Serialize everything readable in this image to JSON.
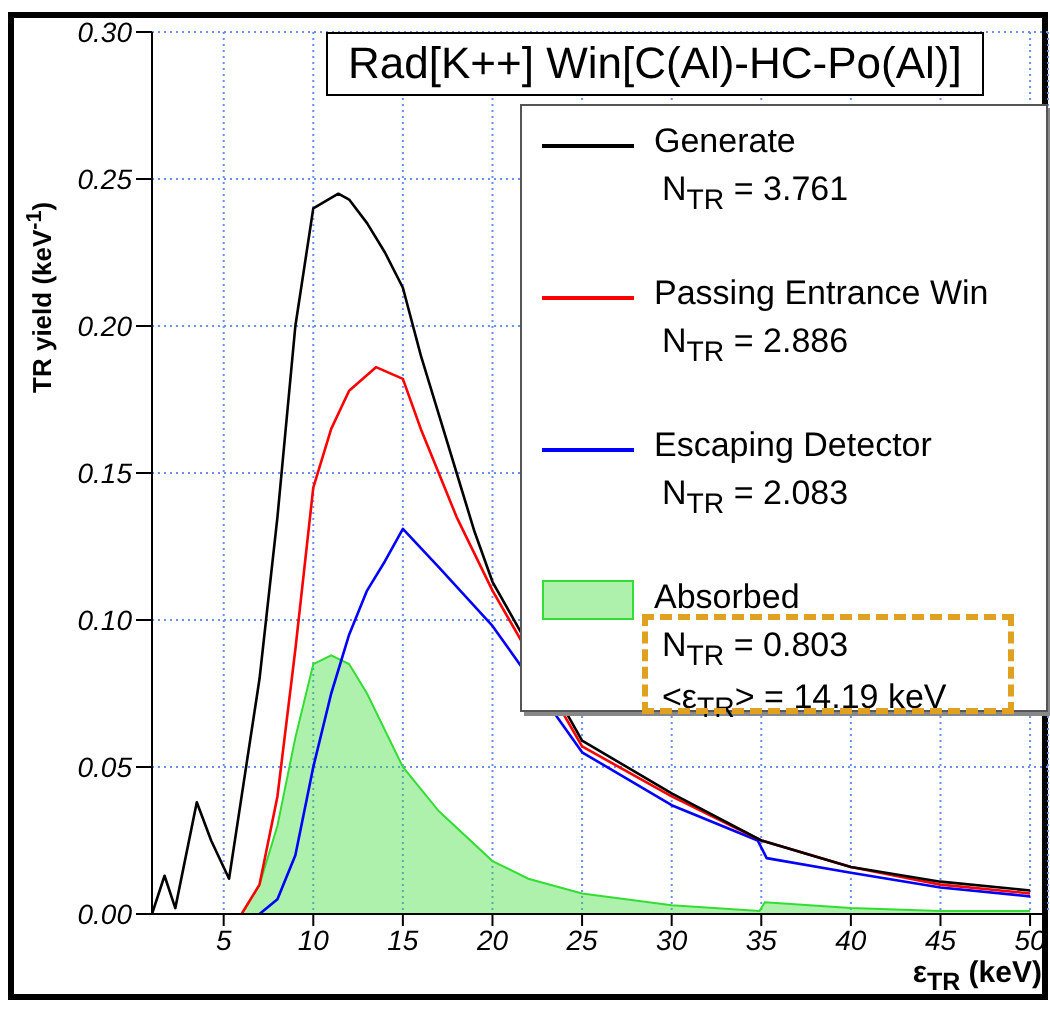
{
  "chart_data": {
    "type": "line",
    "title": "Rad[K++] Win[C(Al)-HC-Po(Al)]",
    "xlabel": "ε$_{TR}$ (keV)",
    "ylabel": "TR yield (keV$^{-1}$)",
    "xlim": [
      1,
      51
    ],
    "xticks": [
      5,
      10,
      15,
      20,
      25,
      30,
      35,
      40,
      45,
      50
    ],
    "ylim": [
      0,
      0.3
    ],
    "yticks": [
      {
        "value": 0,
        "label": "0.00"
      },
      {
        "value": 0.05,
        "label": "0.05"
      },
      {
        "value": 0.1,
        "label": "0.10"
      },
      {
        "value": 0.15,
        "label": "0.15"
      },
      {
        "value": 0.2,
        "label": "0.20"
      },
      {
        "value": 0.25,
        "label": "0.25"
      },
      {
        "value": 0.3,
        "label": "0.30"
      }
    ],
    "grid": true,
    "legend": "top right",
    "marker": "none",
    "line_style": "solid",
    "series": [
      {
        "name": "Generate",
        "color": "#000000",
        "x": [
          1,
          1.7,
          2.3,
          3.5,
          4.3,
          5.3,
          6,
          7,
          8,
          9,
          10,
          11.4,
          12,
          13,
          14,
          15,
          16,
          17,
          18,
          19,
          20,
          22,
          25,
          30,
          35,
          40,
          45,
          50
        ],
        "values": [
          0,
          0.013,
          0.002,
          0.038,
          0.025,
          0.012,
          0.04,
          0.08,
          0.135,
          0.2,
          0.24,
          0.245,
          0.243,
          0.235,
          0.225,
          0.213,
          0.19,
          0.17,
          0.15,
          0.13,
          0.113,
          null,
          0.059,
          0.041,
          0.025,
          0.016,
          0.011,
          0.008
        ]
      },
      {
        "name": "Passing Entrance Win",
        "color": "#ff0000",
        "x": [
          6,
          7,
          8,
          9,
          10,
          11,
          12,
          13.5,
          15,
          16,
          17,
          18,
          20,
          22,
          25,
          30,
          35,
          40,
          45,
          50
        ],
        "values": [
          0,
          0.01,
          0.04,
          0.09,
          0.145,
          0.165,
          0.178,
          0.186,
          0.182,
          0.165,
          0.15,
          0.135,
          0.11,
          null,
          0.057,
          0.04,
          0.025,
          0.016,
          0.01,
          0.007
        ]
      },
      {
        "name": "Escaping Detector",
        "color": "#0000ff",
        "x": [
          7,
          8,
          9,
          10,
          11,
          12,
          13,
          14,
          15,
          17,
          20,
          22,
          25,
          30,
          34.8,
          35.3,
          40,
          45,
          50
        ],
        "values": [
          0,
          0.005,
          0.02,
          0.05,
          0.075,
          0.095,
          0.11,
          0.12,
          0.131,
          0.118,
          0.098,
          null,
          0.055,
          0.037,
          0.025,
          0.019,
          0.014,
          0.009,
          0.006
        ]
      },
      {
        "name": "Absorbed",
        "type": "area",
        "color": "#33dd33",
        "x": [
          6,
          7,
          8,
          9,
          10,
          11,
          12,
          13,
          15,
          17,
          20,
          22,
          25,
          30,
          34.9,
          35.2,
          40,
          45,
          50
        ],
        "values": [
          0,
          0.01,
          0.03,
          0.06,
          0.085,
          0.088,
          0.085,
          0.075,
          0.05,
          0.035,
          0.018,
          0.012,
          0.007,
          0.003,
          0.001,
          0.004,
          0.002,
          0.001,
          0.001
        ]
      }
    ],
    "annotations": [
      "N$_{TR}$ = 3.761",
      "N$_{TR}$ = 2.886",
      "N$_{TR}$ = 2.083",
      "N$_{TR}$ = 0.803",
      "<ε$_{TR}$> = 14.19 keV"
    ]
  }
}
